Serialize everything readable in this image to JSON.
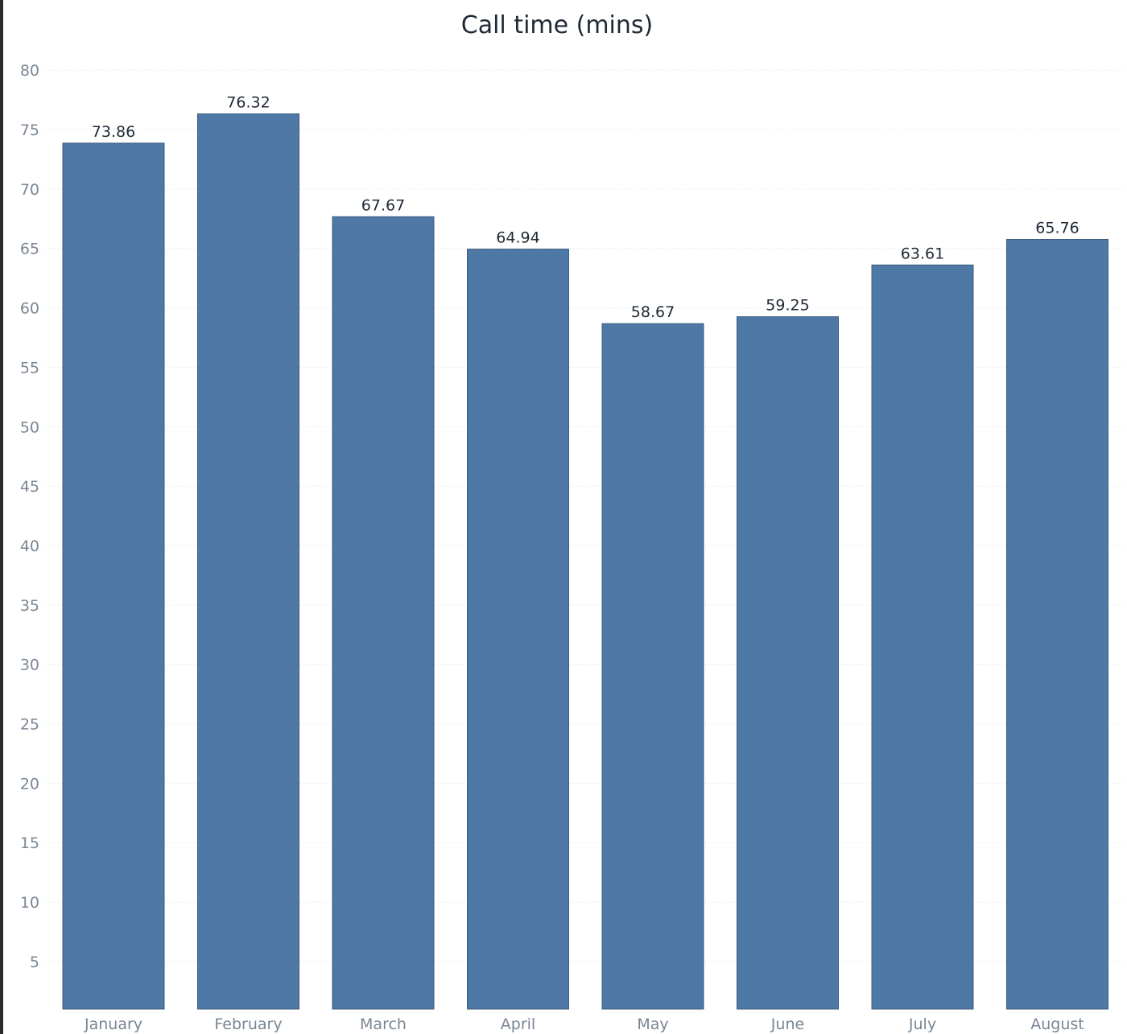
{
  "chart_data": {
    "type": "bar",
    "title": "Call time  (mins)",
    "xlabel": "",
    "ylabel": "",
    "categories": [
      "January",
      "February",
      "March",
      "April",
      "May",
      "June",
      "July",
      "August"
    ],
    "values": [
      73.86,
      76.32,
      67.67,
      64.94,
      58.67,
      59.25,
      63.61,
      65.76
    ],
    "value_labels": [
      "73.86",
      "76.32",
      "67.67",
      "64.94",
      "58.67",
      "59.25",
      "63.61",
      "65.76"
    ],
    "ylim": [
      1,
      81
    ],
    "yticks": [
      5,
      10,
      15,
      20,
      25,
      30,
      35,
      40,
      45,
      50,
      55,
      60,
      65,
      70,
      75,
      80
    ],
    "grid": true,
    "legend": "none",
    "bar_color": "#4e79a7"
  }
}
